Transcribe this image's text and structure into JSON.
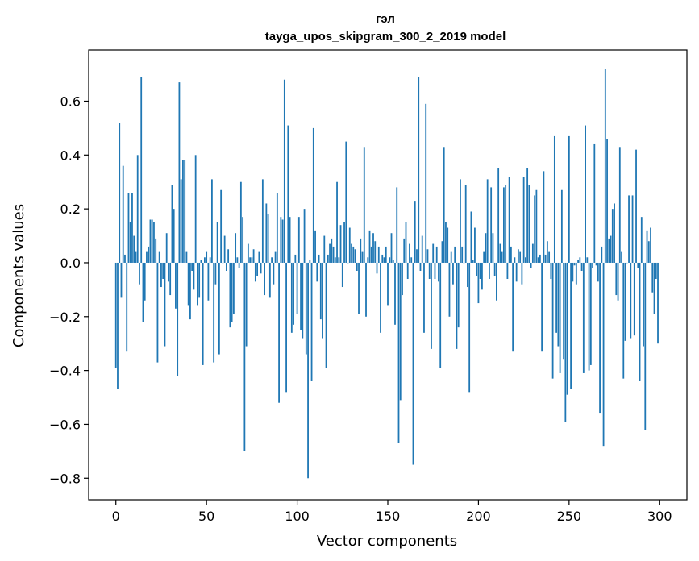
{
  "chart_data": {
    "type": "bar",
    "title": "гэл",
    "subtitle": "tayga_upos_skipgram_300_2_2019 model",
    "xlabel": "Vector components",
    "ylabel": "Components values",
    "xlim": [
      -15,
      315
    ],
    "ylim": [
      -0.88,
      0.79
    ],
    "xticks": [
      0,
      50,
      100,
      150,
      200,
      250,
      300
    ],
    "xtick_labels": [
      "0",
      "50",
      "100",
      "150",
      "200",
      "250",
      "300"
    ],
    "yticks": [
      -0.8,
      -0.6,
      -0.4,
      -0.2,
      0.0,
      0.2,
      0.4,
      0.6
    ],
    "ytick_labels": [
      "−0.8",
      "−0.6",
      "−0.4",
      "−0.2",
      "0.0",
      "0.2",
      "0.4",
      "0.6"
    ],
    "bar_color": "#1f77b4",
    "grid": false,
    "x": "0..299",
    "values": [
      -0.39,
      -0.47,
      0.52,
      -0.13,
      0.36,
      0.03,
      -0.33,
      0.26,
      0.15,
      0.26,
      0.1,
      0.04,
      0.4,
      -0.08,
      0.69,
      -0.22,
      -0.14,
      0.04,
      0.06,
      0.16,
      0.16,
      0.15,
      0.09,
      -0.37,
      0.04,
      -0.09,
      -0.06,
      -0.31,
      0.11,
      -0.07,
      -0.12,
      0.29,
      0.2,
      -0.17,
      -0.42,
      0.67,
      0.31,
      0.38,
      0.38,
      0.04,
      -0.16,
      -0.21,
      -0.03,
      -0.1,
      0.4,
      -0.16,
      -0.13,
      0.01,
      -0.38,
      0.02,
      0.04,
      -0.14,
      0.02,
      0.31,
      -0.37,
      -0.08,
      0.15,
      -0.34,
      0.27,
      0.0,
      0.1,
      -0.03,
      0.05,
      -0.24,
      -0.22,
      -0.19,
      0.11,
      0.02,
      -0.02,
      0.3,
      0.17,
      -0.7,
      -0.31,
      0.07,
      0.02,
      0.02,
      0.05,
      -0.07,
      -0.05,
      0.04,
      -0.04,
      0.31,
      -0.12,
      0.22,
      0.18,
      -0.13,
      0.02,
      -0.08,
      0.04,
      0.26,
      -0.52,
      0.17,
      0.16,
      0.68,
      -0.48,
      0.51,
      0.17,
      -0.26,
      -0.23,
      0.03,
      -0.19,
      0.17,
      -0.25,
      -0.28,
      0.2,
      -0.34,
      -0.8,
      0.01,
      -0.44,
      0.5,
      0.12,
      -0.07,
      0.03,
      -0.21,
      -0.28,
      0.1,
      -0.39,
      0.03,
      0.07,
      0.09,
      0.06,
      0.02,
      0.3,
      0.02,
      0.14,
      -0.09,
      0.15,
      0.45,
      0.0,
      0.13,
      0.07,
      0.06,
      0.05,
      -0.03,
      -0.19,
      0.09,
      0.04,
      0.43,
      -0.2,
      0.02,
      0.12,
      0.06,
      0.11,
      0.08,
      -0.04,
      0.06,
      -0.26,
      0.03,
      0.02,
      0.06,
      -0.16,
      0.02,
      0.11,
      0.01,
      -0.23,
      0.28,
      -0.67,
      -0.51,
      -0.12,
      0.09,
      0.15,
      -0.06,
      0.07,
      0.02,
      -0.75,
      0.23,
      0.05,
      0.69,
      -0.03,
      0.1,
      -0.26,
      0.59,
      0.05,
      -0.06,
      -0.32,
      0.07,
      -0.06,
      0.06,
      -0.07,
      -0.39,
      0.08,
      0.43,
      0.15,
      0.13,
      -0.2,
      0.04,
      -0.08,
      0.06,
      -0.32,
      -0.24,
      0.31,
      0.06,
      0.0,
      0.29,
      -0.09,
      -0.48,
      0.19,
      0.01,
      0.13,
      -0.05,
      -0.15,
      -0.06,
      -0.1,
      0.04,
      0.11,
      0.31,
      -0.06,
      0.28,
      0.11,
      -0.05,
      -0.14,
      0.35,
      0.07,
      0.04,
      0.28,
      0.29,
      -0.06,
      0.32,
      0.06,
      -0.33,
      0.02,
      -0.07,
      0.05,
      0.04,
      -0.08,
      0.32,
      0.02,
      0.35,
      0.29,
      -0.02,
      0.07,
      0.25,
      0.27,
      0.02,
      0.03,
      -0.33,
      0.34,
      0.03,
      0.08,
      0.04,
      -0.06,
      -0.43,
      0.47,
      -0.26,
      -0.31,
      -0.41,
      0.27,
      -0.36,
      -0.59,
      -0.49,
      0.47,
      -0.47,
      -0.07,
      -0.01,
      -0.08,
      0.01,
      0.02,
      -0.03,
      -0.41,
      0.51,
      0.02,
      -0.4,
      -0.38,
      -0.02,
      0.44,
      -0.01,
      -0.07,
      -0.56,
      0.06,
      -0.68,
      0.72,
      0.46,
      0.09,
      0.1,
      0.2,
      0.22,
      -0.12,
      -0.14,
      0.43,
      0.04,
      -0.43,
      -0.29,
      0.0,
      0.25,
      -0.28,
      0.25,
      -0.27,
      0.42,
      -0.02,
      -0.44,
      0.17,
      -0.31,
      -0.62,
      0.12,
      0.08,
      0.13,
      -0.11,
      -0.19,
      -0.06,
      -0.3
    ]
  }
}
